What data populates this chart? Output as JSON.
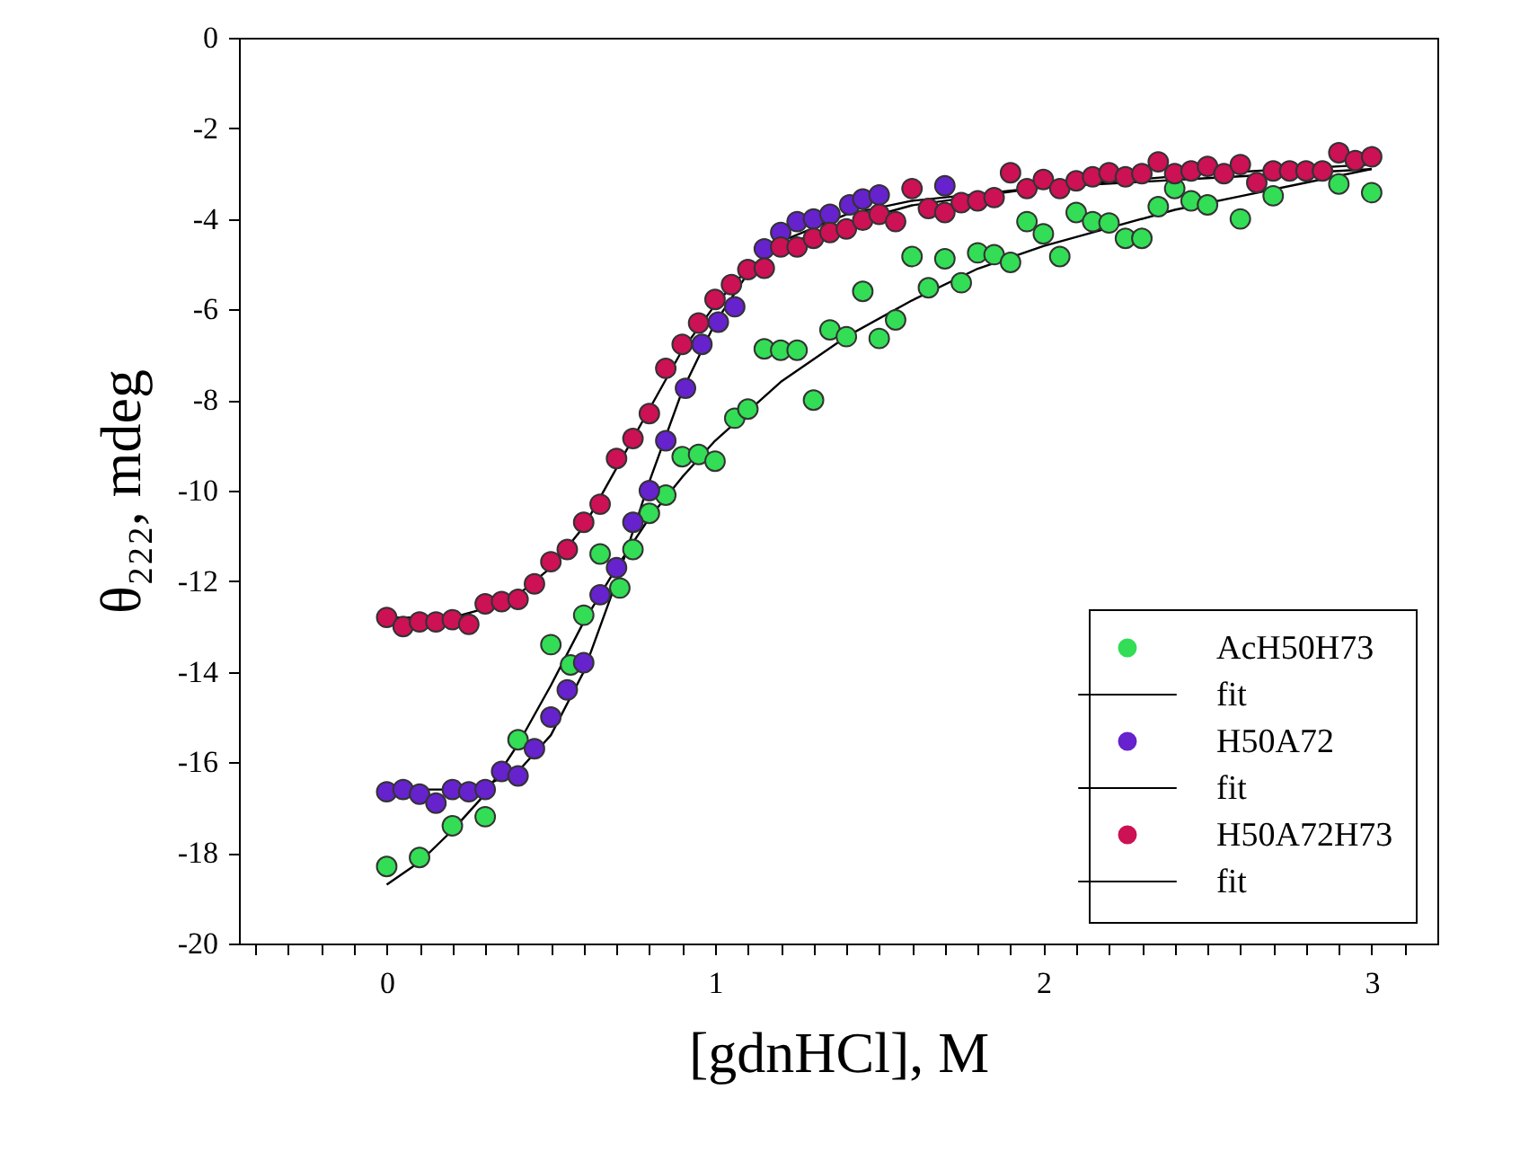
{
  "chart_data": {
    "type": "scatter",
    "xlabel": "[gdnHCl], M",
    "ylabel": "θ₂₂₂, mdeg",
    "xlim": [
      -0.45,
      3.2
    ],
    "ylim": [
      -20,
      0
    ],
    "xticks": [
      {
        "value": -0.4,
        "label": null
      },
      {
        "value": -0.3,
        "label": null
      },
      {
        "value": -0.2,
        "label": null
      },
      {
        "value": -0.1,
        "label": null
      },
      0,
      {
        "value": 0.1,
        "label": null
      },
      {
        "value": 0.2,
        "label": null
      },
      {
        "value": 0.3,
        "label": null
      },
      {
        "value": 0.4,
        "label": null
      },
      {
        "value": 0.5,
        "label": null
      },
      {
        "value": 0.6,
        "label": null
      },
      {
        "value": 0.7,
        "label": null
      },
      {
        "value": 0.8,
        "label": null
      },
      {
        "value": 0.9,
        "label": null
      },
      1,
      {
        "value": 1.1,
        "label": null
      },
      {
        "value": 1.2,
        "label": null
      },
      {
        "value": 1.3,
        "label": null
      },
      {
        "value": 1.4,
        "label": null
      },
      {
        "value": 1.5,
        "label": null
      },
      {
        "value": 1.6,
        "label": null
      },
      {
        "value": 1.7,
        "label": null
      },
      {
        "value": 1.8,
        "label": null
      },
      {
        "value": 1.9,
        "label": null
      },
      2,
      {
        "value": 2.1,
        "label": null
      },
      {
        "value": 2.2,
        "label": null
      },
      {
        "value": 2.3,
        "label": null
      },
      {
        "value": 2.4,
        "label": null
      },
      {
        "value": 2.5,
        "label": null
      },
      {
        "value": 2.6,
        "label": null
      },
      {
        "value": 2.7,
        "label": null
      },
      {
        "value": 2.8,
        "label": null
      },
      {
        "value": 2.9,
        "label": null
      },
      3,
      {
        "value": 3.1,
        "label": null
      }
    ],
    "yticks": [
      0,
      -2,
      -4,
      -6,
      -8,
      -10,
      -12,
      -14,
      -16,
      -18,
      -20
    ],
    "grid": false,
    "legend": "bottom right",
    "line_style": "solid",
    "series": [
      {
        "name": "AcH50H73",
        "marker": "circle",
        "color": "#33dd55",
        "x": [
          0,
          0.1,
          0.2,
          0.3,
          0.4,
          0.5,
          0.56,
          0.6,
          0.65,
          0.71,
          0.75,
          0.8,
          0.85,
          0.9,
          0.95,
          1.0,
          1.06,
          1.1,
          1.15,
          1.2,
          1.25,
          1.3,
          1.35,
          1.4,
          1.45,
          1.5,
          1.55,
          1.6,
          1.65,
          1.7,
          1.75,
          1.8,
          1.85,
          1.9,
          1.95,
          2.0,
          2.05,
          2.1,
          2.15,
          2.2,
          2.25,
          2.3,
          2.35,
          2.4,
          2.45,
          2.5,
          2.6,
          2.7,
          2.9,
          3.0
        ],
        "values": [
          -18.3,
          -18.1,
          -17.4,
          -17.2,
          -15.5,
          -13.4,
          -13.85,
          -12.75,
          -11.4,
          -12.15,
          -11.3,
          -10.5,
          -10.1,
          -9.25,
          -9.2,
          -9.35,
          -8.4,
          -8.2,
          -6.87,
          -6.9,
          -6.9,
          -8.0,
          -6.45,
          -6.6,
          -5.6,
          -6.64,
          -6.23,
          -4.83,
          -5.52,
          -4.88,
          -5.41,
          -4.75,
          -4.79,
          -4.96,
          -4.06,
          -4.33,
          -4.83,
          -3.86,
          -4.06,
          -4.09,
          -4.43,
          -4.43,
          -3.73,
          -3.33,
          -3.6,
          -3.69,
          -4.0,
          -3.49,
          -3.23,
          -3.42
        ]
      },
      {
        "name": "fit",
        "type": "line",
        "color": "#000000",
        "x": [
          0,
          0.1,
          0.2,
          0.3,
          0.4,
          0.5,
          0.6,
          0.7,
          0.8,
          0.9,
          1.0,
          1.2,
          1.4,
          1.6,
          1.8,
          2.0,
          2.2,
          2.4,
          2.6,
          2.8,
          3.0
        ],
        "values": [
          -18.7,
          -18.2,
          -17.5,
          -16.7,
          -15.6,
          -14.3,
          -12.9,
          -11.7,
          -10.6,
          -9.7,
          -8.9,
          -7.6,
          -6.6,
          -5.8,
          -5.1,
          -4.6,
          -4.2,
          -3.8,
          -3.5,
          -3.2,
          -2.9
        ]
      },
      {
        "name": "H50A72",
        "marker": "circle",
        "color": "#6622cc",
        "x": [
          0,
          0.05,
          0.1,
          0.15,
          0.2,
          0.25,
          0.3,
          0.35,
          0.4,
          0.45,
          0.5,
          0.55,
          0.6,
          0.65,
          0.7,
          0.75,
          0.8,
          0.85,
          0.91,
          0.96,
          1.01,
          1.06,
          1.15,
          1.2,
          1.25,
          1.3,
          1.35,
          1.41,
          1.45,
          1.5,
          1.7
        ],
        "values": [
          -16.65,
          -16.6,
          -16.7,
          -16.9,
          -16.6,
          -16.65,
          -16.6,
          -16.2,
          -16.3,
          -15.7,
          -15.0,
          -14.4,
          -13.8,
          -12.3,
          -11.7,
          -10.7,
          -10.0,
          -8.9,
          -7.74,
          -6.77,
          -6.28,
          -5.94,
          -4.66,
          -4.3,
          -4.06,
          -4.0,
          -3.9,
          -3.69,
          -3.56,
          -3.47,
          -3.27
        ]
      },
      {
        "name": "fit",
        "type": "line",
        "color": "#000000",
        "x": [
          0,
          0.2,
          0.3,
          0.4,
          0.5,
          0.6,
          0.7,
          0.8,
          0.9,
          1.0,
          1.1,
          1.2,
          1.4,
          1.6,
          2.0,
          2.5,
          3.0
        ],
        "values": [
          -16.6,
          -16.6,
          -16.5,
          -16.2,
          -15.4,
          -14.0,
          -12.0,
          -9.8,
          -7.8,
          -6.3,
          -5.2,
          -4.5,
          -3.9,
          -3.6,
          -3.3,
          -3.1,
          -2.9
        ]
      },
      {
        "name": "H50A72H73",
        "marker": "circle",
        "color": "#cc1155",
        "x": [
          0,
          0.05,
          0.1,
          0.15,
          0.2,
          0.25,
          0.3,
          0.35,
          0.4,
          0.45,
          0.5,
          0.55,
          0.6,
          0.65,
          0.7,
          0.75,
          0.8,
          0.85,
          0.9,
          0.95,
          1.0,
          1.05,
          1.1,
          1.15,
          1.2,
          1.25,
          1.3,
          1.35,
          1.4,
          1.45,
          1.5,
          1.55,
          1.6,
          1.65,
          1.7,
          1.75,
          1.8,
          1.85,
          1.9,
          1.95,
          2.0,
          2.05,
          2.1,
          2.15,
          2.2,
          2.25,
          2.3,
          2.35,
          2.4,
          2.45,
          2.5,
          2.55,
          2.6,
          2.65,
          2.7,
          2.75,
          2.8,
          2.85,
          2.9,
          2.95,
          3.0
        ],
        "values": [
          -12.8,
          -13.0,
          -12.9,
          -12.9,
          -12.85,
          -12.95,
          -12.5,
          -12.45,
          -12.4,
          -12.06,
          -11.57,
          -11.3,
          -10.7,
          -10.3,
          -9.29,
          -8.85,
          -8.3,
          -7.3,
          -6.77,
          -6.3,
          -5.78,
          -5.45,
          -5.12,
          -5.09,
          -4.62,
          -4.62,
          -4.43,
          -4.3,
          -4.22,
          -4.03,
          -3.9,
          -4.06,
          -3.33,
          -3.77,
          -3.86,
          -3.64,
          -3.6,
          -3.53,
          -2.98,
          -3.33,
          -3.13,
          -3.33,
          -3.16,
          -3.07,
          -2.98,
          -3.07,
          -3.0,
          -2.74,
          -3.0,
          -2.94,
          -2.84,
          -3.0,
          -2.8,
          -3.2,
          -2.94,
          -2.94,
          -2.94,
          -2.94,
          -2.54,
          -2.71,
          -2.63
        ]
      },
      {
        "name": "fit",
        "type": "line",
        "color": "#000000",
        "x": [
          0,
          0.2,
          0.3,
          0.4,
          0.5,
          0.6,
          0.7,
          0.8,
          0.9,
          1.0,
          1.1,
          1.2,
          1.4,
          1.6,
          2.0,
          2.5,
          3.0
        ],
        "values": [
          -12.8,
          -12.8,
          -12.6,
          -12.3,
          -11.7,
          -10.8,
          -9.5,
          -8.2,
          -6.9,
          -5.9,
          -5.1,
          -4.6,
          -4.1,
          -3.7,
          -3.3,
          -3.0,
          -2.8
        ]
      }
    ]
  }
}
